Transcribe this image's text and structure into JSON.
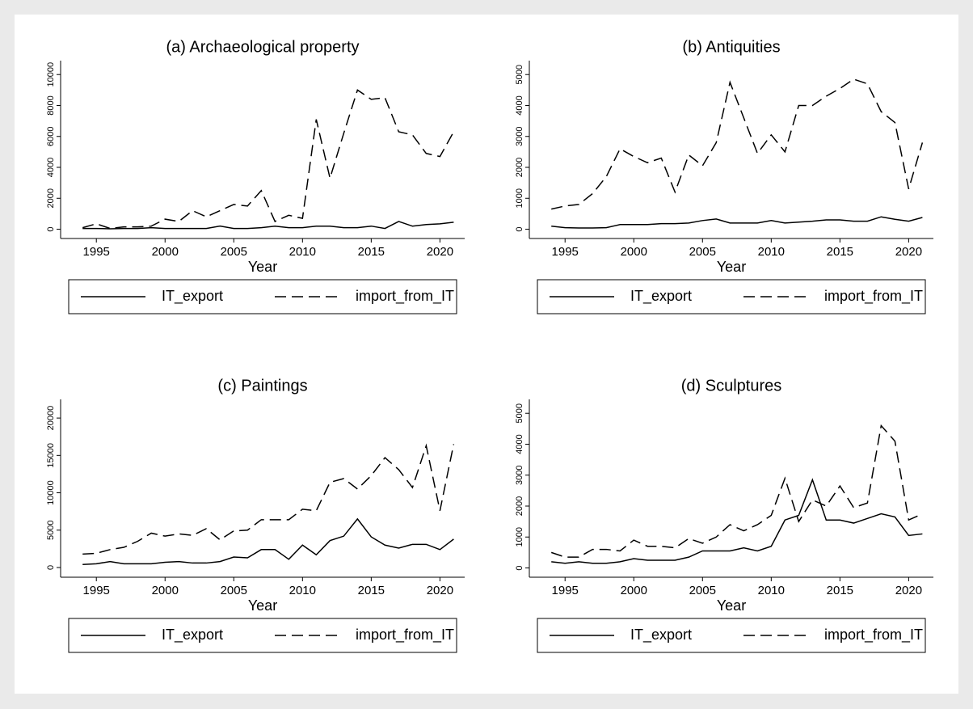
{
  "chart_data": [
    {
      "type": "line",
      "title": "(a) Archaeological property",
      "x_label": "Year",
      "x": [
        1994,
        1995,
        1996,
        1997,
        1998,
        1999,
        2000,
        2001,
        2002,
        2003,
        2004,
        2005,
        2006,
        2007,
        2008,
        2009,
        2010,
        2011,
        2012,
        2013,
        2014,
        2015,
        2016,
        2017,
        2018,
        2019,
        2020,
        2021
      ],
      "xlim": [
        1992.4,
        2021.8
      ],
      "xticks": [
        1995,
        2000,
        2005,
        2010,
        2015,
        2020
      ],
      "ylim": [
        -600,
        10900
      ],
      "yticks": [
        0,
        2000,
        4000,
        6000,
        8000,
        10000
      ],
      "series": [
        {
          "name": "IT_export",
          "color": "#000000",
          "dash": "solid",
          "values": [
            50,
            50,
            30,
            50,
            50,
            100,
            50,
            50,
            50,
            50,
            200,
            50,
            50,
            100,
            200,
            100,
            100,
            200,
            200,
            100,
            100,
            200,
            50,
            500,
            200,
            300,
            350,
            450
          ]
        },
        {
          "name": "import_from_IT",
          "color": "#000000",
          "dash": "dashed",
          "values": [
            100,
            350,
            50,
            150,
            150,
            200,
            650,
            500,
            1200,
            800,
            1200,
            1600,
            1500,
            2500,
            500,
            900,
            700,
            7100,
            3300,
            6200,
            9000,
            8400,
            8500,
            6300,
            6100,
            4900,
            4700,
            6300
          ]
        }
      ]
    },
    {
      "type": "line",
      "title": "(b) Antiquities",
      "x_label": "Year",
      "x": [
        1994,
        1995,
        1996,
        1997,
        1998,
        1999,
        2000,
        2001,
        2002,
        2003,
        2004,
        2005,
        2006,
        2007,
        2008,
        2009,
        2010,
        2011,
        2012,
        2013,
        2014,
        2015,
        2016,
        2017,
        2018,
        2019,
        2020,
        2021
      ],
      "xlim": [
        1992.4,
        2021.8
      ],
      "xticks": [
        1995,
        2000,
        2005,
        2010,
        2015,
        2020
      ],
      "ylim": [
        -300,
        5450
      ],
      "yticks": [
        0,
        1000,
        2000,
        3000,
        4000,
        5000
      ],
      "series": [
        {
          "name": "IT_export",
          "color": "#000000",
          "dash": "solid",
          "values": [
            100,
            50,
            40,
            40,
            50,
            150,
            150,
            150,
            180,
            180,
            200,
            280,
            330,
            200,
            200,
            200,
            280,
            200,
            230,
            260,
            300,
            300,
            260,
            260,
            400,
            320,
            260,
            380
          ]
        },
        {
          "name": "import_from_IT",
          "color": "#000000",
          "dash": "dashed",
          "values": [
            650,
            750,
            800,
            1150,
            1700,
            2600,
            2350,
            2150,
            2300,
            1200,
            2400,
            2050,
            2800,
            4750,
            3600,
            2450,
            3050,
            2500,
            4000,
            4000,
            4300,
            4550,
            4850,
            4700,
            3800,
            3450,
            1300,
            2800
          ]
        }
      ]
    },
    {
      "type": "line",
      "title": "(c) Paintings",
      "x_label": "Year",
      "x": [
        1994,
        1995,
        1996,
        1997,
        1998,
        1999,
        2000,
        2001,
        2002,
        2003,
        2004,
        2005,
        2006,
        2007,
        2008,
        2009,
        2010,
        2011,
        2012,
        2013,
        2014,
        2015,
        2016,
        2017,
        2018,
        2019,
        2020,
        2021
      ],
      "xlim": [
        1992.4,
        2021.8
      ],
      "xticks": [
        1995,
        2000,
        2005,
        2010,
        2015,
        2020
      ],
      "ylim": [
        -1300,
        22500
      ],
      "yticks": [
        0,
        5000,
        10000,
        15000,
        20000
      ],
      "series": [
        {
          "name": "IT_export",
          "color": "#000000",
          "dash": "solid",
          "values": [
            400,
            500,
            800,
            500,
            500,
            500,
            700,
            800,
            600,
            600,
            800,
            1400,
            1300,
            2400,
            2400,
            1100,
            3000,
            1700,
            3600,
            4200,
            6500,
            4100,
            3000,
            2600,
            3100,
            3100,
            2400,
            3800
          ]
        },
        {
          "name": "import_from_IT",
          "color": "#000000",
          "dash": "dashed",
          "values": [
            1800,
            1900,
            2400,
            2700,
            3500,
            4600,
            4200,
            4500,
            4300,
            5200,
            3700,
            4900,
            5000,
            6400,
            6400,
            6400,
            7800,
            7600,
            11400,
            11900,
            10500,
            12300,
            14700,
            13100,
            10700,
            16300,
            7600,
            16500
          ]
        }
      ]
    },
    {
      "type": "line",
      "title": "(d) Sculptures",
      "x_label": "Year",
      "x": [
        1994,
        1995,
        1996,
        1997,
        1998,
        1999,
        2000,
        2001,
        2002,
        2003,
        2004,
        2005,
        2006,
        2007,
        2008,
        2009,
        2010,
        2011,
        2012,
        2013,
        2014,
        2015,
        2016,
        2017,
        2018,
        2019,
        2020,
        2021
      ],
      "xlim": [
        1992.4,
        2021.8
      ],
      "xticks": [
        1995,
        2000,
        2005,
        2010,
        2015,
        2020
      ],
      "ylim": [
        -300,
        5450
      ],
      "yticks": [
        0,
        1000,
        2000,
        3000,
        4000,
        5000
      ],
      "series": [
        {
          "name": "IT_export",
          "color": "#000000",
          "dash": "solid",
          "values": [
            200,
            150,
            200,
            150,
            150,
            200,
            300,
            250,
            250,
            250,
            350,
            550,
            550,
            550,
            650,
            550,
            700,
            1550,
            1700,
            2850,
            1550,
            1550,
            1450,
            1600,
            1750,
            1650,
            1050,
            1100
          ]
        },
        {
          "name": "import_from_IT",
          "color": "#000000",
          "dash": "dashed",
          "values": [
            500,
            350,
            350,
            600,
            600,
            550,
            900,
            700,
            700,
            650,
            950,
            800,
            1000,
            1400,
            1200,
            1400,
            1700,
            2900,
            1500,
            2200,
            2000,
            2650,
            1950,
            2100,
            4600,
            4100,
            1550,
            1750
          ]
        }
      ]
    }
  ]
}
